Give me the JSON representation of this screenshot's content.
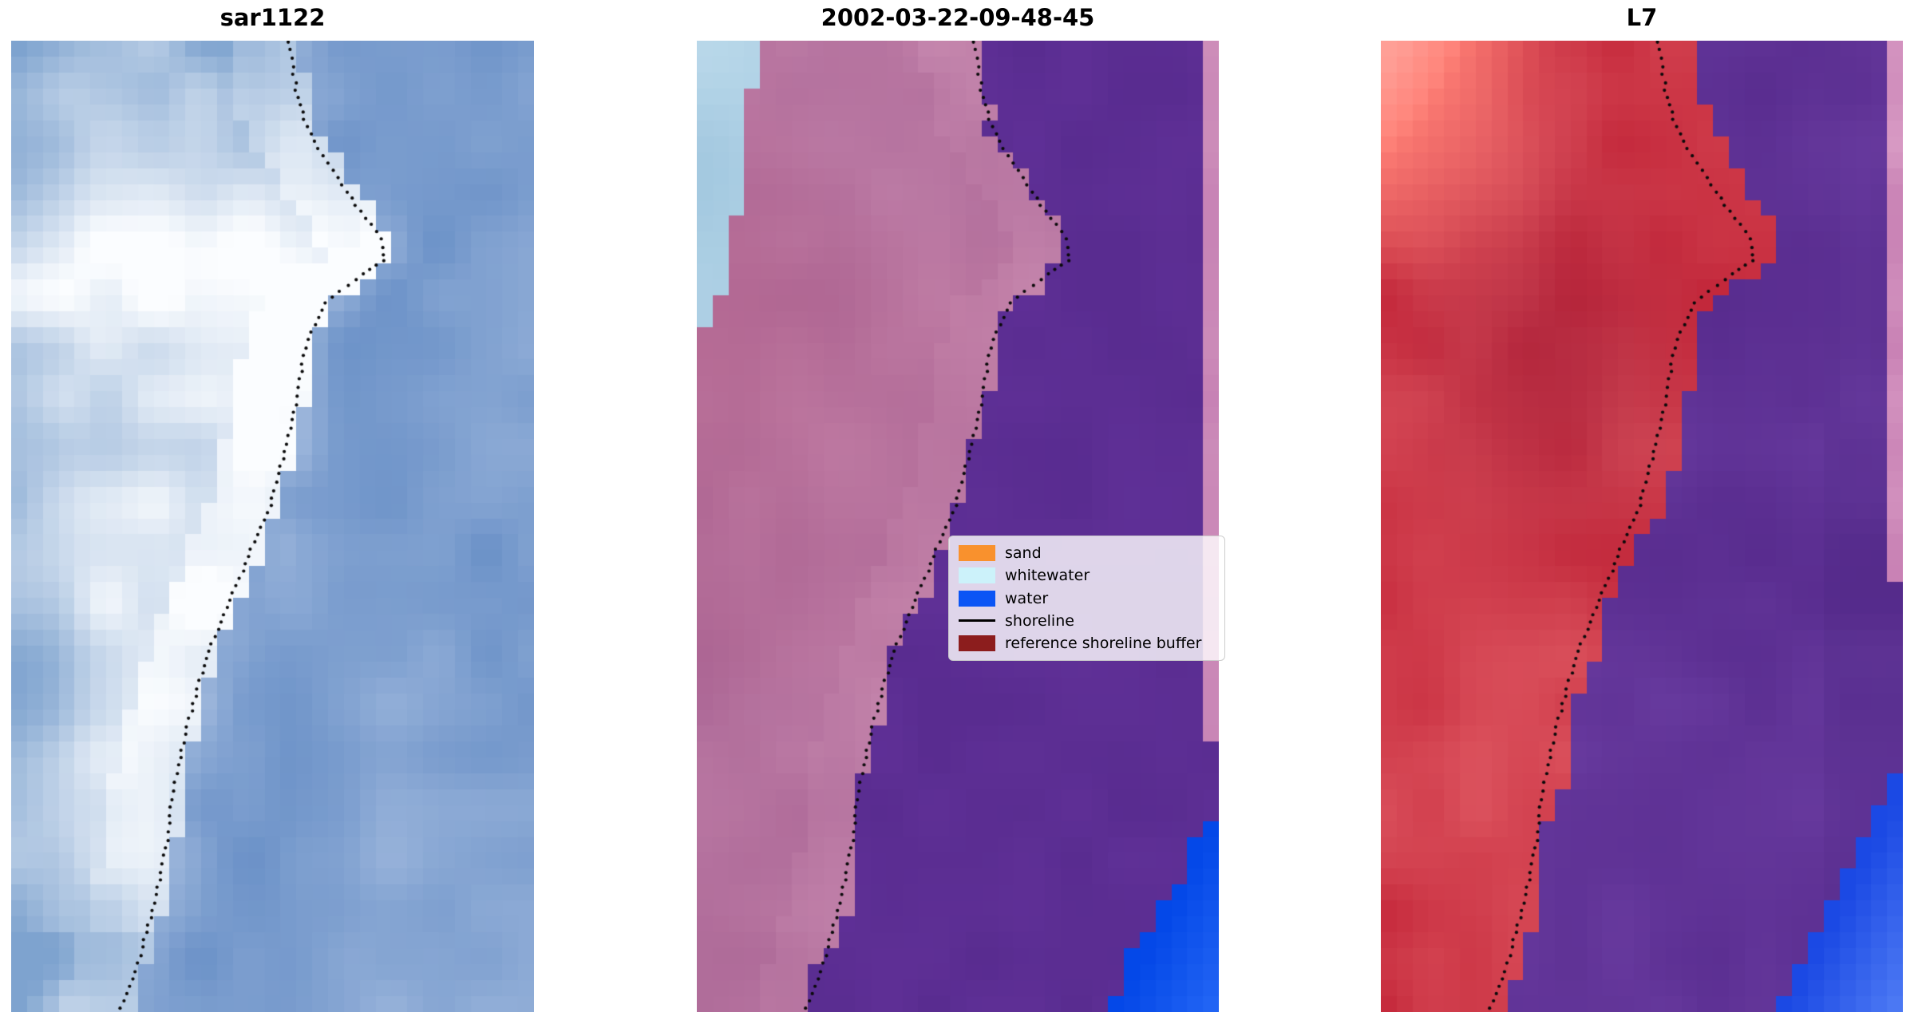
{
  "figure": {
    "background": "#ffffff"
  },
  "panels": [
    {
      "kind": "sar",
      "title": "sar1122",
      "palette": {
        "water_dark": "#5d87c2",
        "water_light": "#9cb6dc",
        "land_base": "#7ea3cf",
        "land_bright": "#fbfdff"
      }
    },
    {
      "kind": "classification",
      "title": "2002-03-22-09-48-45",
      "palette": {
        "buffer_dark": "#a55f90",
        "buffer_light": "#c687ae",
        "buffer_rose": "#b55f86",
        "buffer_edge_light": "#e1aac8",
        "water": "#592c90",
        "water_light": "#66359e",
        "whitewater_dark": "#9fc6de",
        "whitewater_light": "#c2deee",
        "edge_strip": "#c782b5",
        "edge_strip_light": "#d296be",
        "water_patch_dark": "#0448e8",
        "water_patch_light": "#3c7dff"
      }
    },
    {
      "kind": "landsat",
      "title": "L7",
      "palette": {
        "land_dark": "#c01f33",
        "land_light": "#e05a64",
        "land_core": "#9d1430",
        "land_salmon": "#ff8076",
        "land_corner": "#ffb4ac",
        "water_dark": "#54288a",
        "water_light": "#6d3fa4",
        "water_edge": "#47257e",
        "water_patch_dark": "#1b49e4",
        "water_patch_light": "#6f9bff",
        "edge_strip": "#c77fb3",
        "edge_strip_light": "#d89ac4"
      }
    }
  ],
  "legend": {
    "items": [
      {
        "label": "sand",
        "swatch": "#f9912d",
        "type": "patch"
      },
      {
        "label": "whitewater",
        "swatch": "#ccf2fa",
        "type": "patch"
      },
      {
        "label": "water",
        "swatch": "#0b55f5",
        "type": "patch"
      },
      {
        "label": "shoreline",
        "swatch": "#000000",
        "type": "line"
      },
      {
        "label": "reference shoreline buffer",
        "swatch": "#8c1d1d",
        "type": "patch"
      }
    ]
  },
  "shoreline_style": {
    "color": "#0a0a0a",
    "pattern": "dotted"
  },
  "shoreline_path": [
    [
      0.0,
      0.53
    ],
    [
      0.05,
      0.545
    ],
    [
      0.09,
      0.565
    ],
    [
      0.13,
      0.61
    ],
    [
      0.17,
      0.66
    ],
    [
      0.2,
      0.705
    ],
    [
      0.225,
      0.715
    ],
    [
      0.245,
      0.66
    ],
    [
      0.27,
      0.6
    ],
    [
      0.31,
      0.565
    ],
    [
      0.35,
      0.552
    ],
    [
      0.4,
      0.535
    ],
    [
      0.44,
      0.515
    ],
    [
      0.48,
      0.495
    ],
    [
      0.52,
      0.462
    ],
    [
      0.55,
      0.44
    ],
    [
      0.58,
      0.415
    ],
    [
      0.62,
      0.385
    ],
    [
      0.66,
      0.36
    ],
    [
      0.7,
      0.34
    ],
    [
      0.74,
      0.322
    ],
    [
      0.78,
      0.308
    ],
    [
      0.82,
      0.3
    ],
    [
      0.86,
      0.285
    ],
    [
      0.9,
      0.268
    ],
    [
      0.94,
      0.248
    ],
    [
      0.97,
      0.228
    ],
    [
      1.0,
      0.205
    ]
  ],
  "chart_data": [
    {
      "type": "heatmap",
      "title": "sar1122",
      "xlabel": "",
      "ylabel": "",
      "description": "Pixelated SAR backscatter tile: bright white/grey returns over beach-land on the left, blue water on the right; dotted black markers trace the detected shoreline from top (x~0.53 of width) to bottom (x~0.21).",
      "grid": false,
      "legend_position": "none"
    },
    {
      "type": "heatmap",
      "title": "2002-03-22-09-48-45",
      "xlabel": "",
      "ylabel": "",
      "description": "Classified satellite image: mauve-pink area = reference shoreline buffer over land, solid purple = unclassified water side, pale-blue patch in top-left = whitewater, bright-blue wedge in bottom-right = water class, narrow pink strip along upper right edge; dotted black markers = mapped shoreline.",
      "legend_entries": [
        "sand",
        "whitewater",
        "water",
        "shoreline",
        "reference shoreline buffer"
      ],
      "legend_position": "center-right",
      "grid": false
    },
    {
      "type": "heatmap",
      "title": "L7",
      "xlabel": "",
      "ylabel": "",
      "description": "Landsat 7 false-colour composite of the same area: red = land (salmon highlight in top-left corner), purple = water, bright-blue wedge in bottom-right, thin pink strip on upper right edge; dotted black markers = shoreline.",
      "grid": false,
      "legend_position": "none"
    }
  ]
}
